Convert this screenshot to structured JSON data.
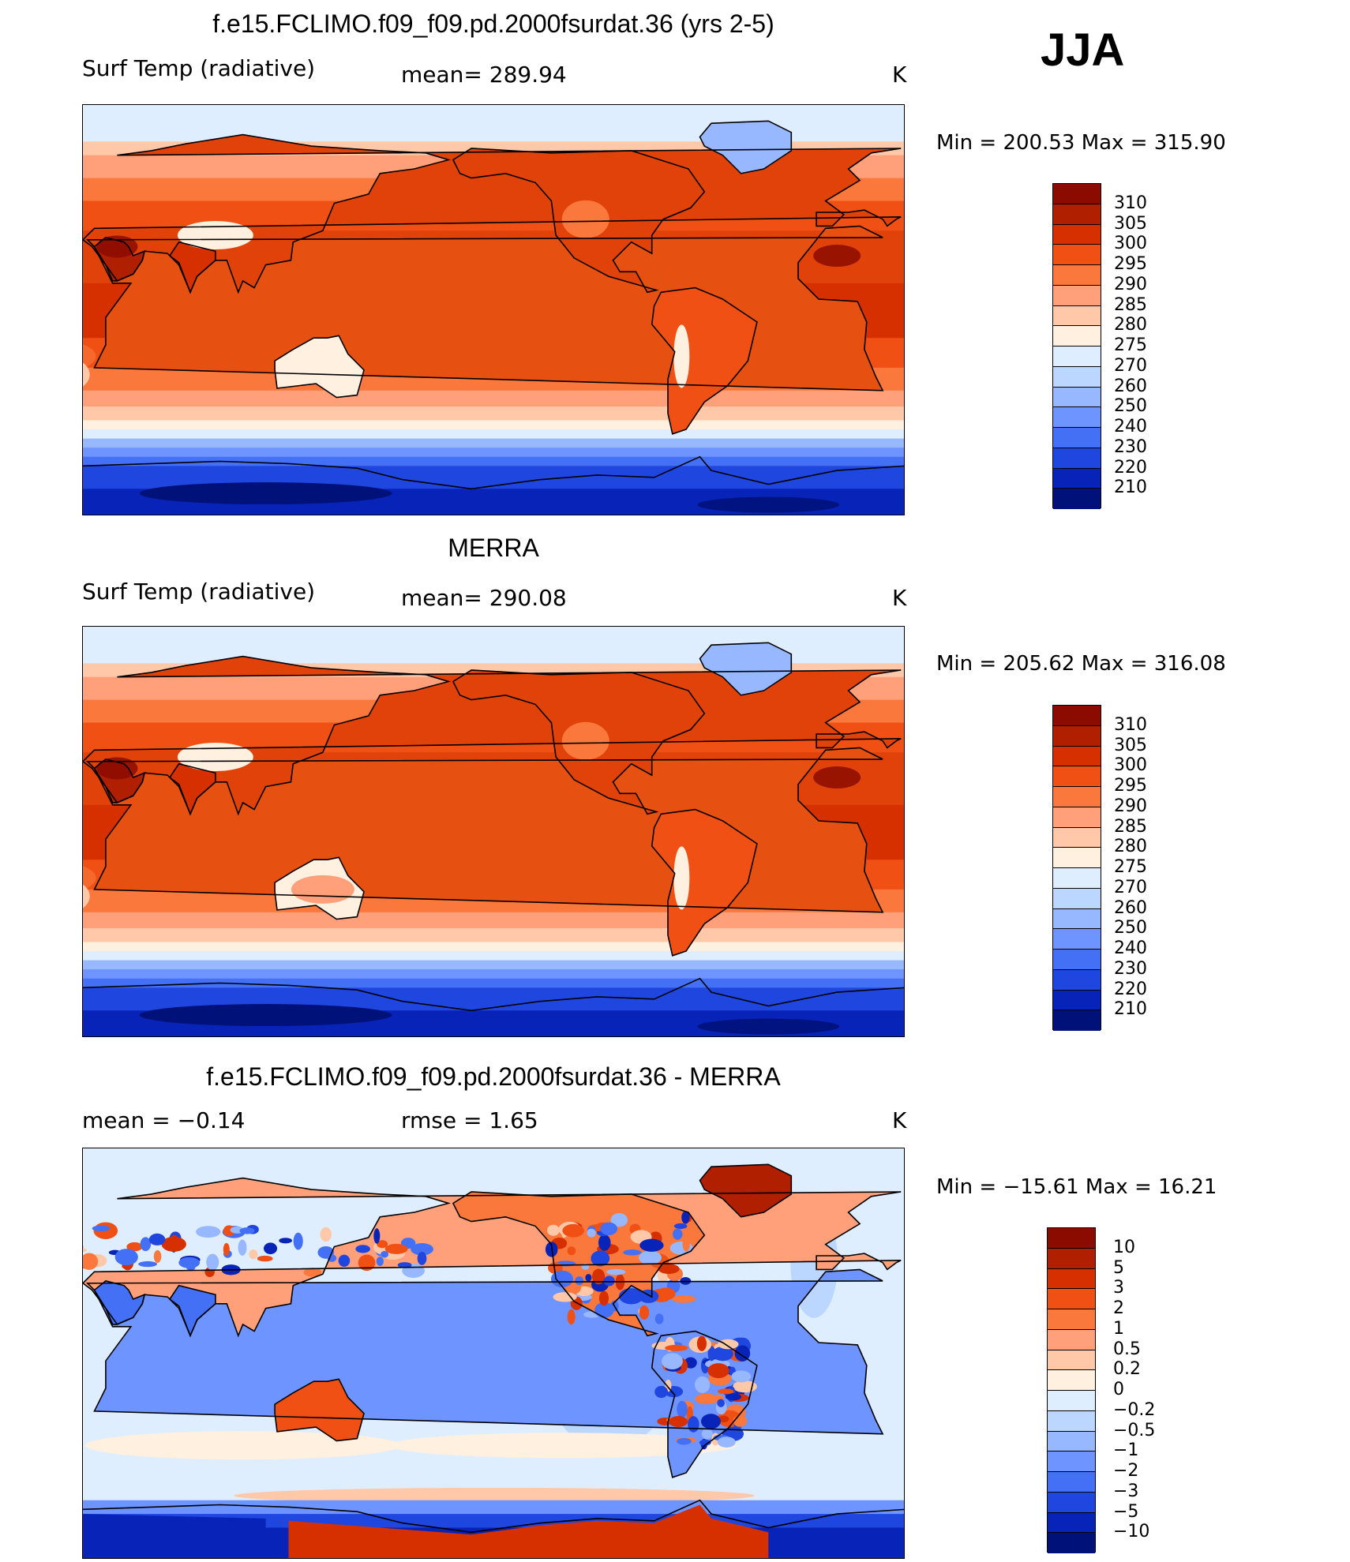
{
  "season": "JJA",
  "unit": "K",
  "panels": [
    {
      "title": "f.e15.FCLIMO.f09_f09.pd.2000fsurdat.36 (yrs 2-5)",
      "left_label": "Surf Temp (radiative)",
      "center_label": "mean= 289.94",
      "unit": "K",
      "minmax": "Min = 200.53 Max = 315.90",
      "legend_labels": [
        "310",
        "305",
        "300",
        "295",
        "290",
        "285",
        "280",
        "275",
        "270",
        "260",
        "250",
        "240",
        "230",
        "220",
        "210"
      ],
      "legend_colors": [
        "#8c0b00",
        "#b01f00",
        "#d63000",
        "#f05014",
        "#fa783c",
        "#ffa07a",
        "#ffc8a8",
        "#fff0e0",
        "#dfeeff",
        "#bcd7ff",
        "#97b8ff",
        "#6e94ff",
        "#4470f5",
        "#2046e0",
        "#0824b8",
        "#00127a"
      ]
    },
    {
      "title": "MERRA",
      "left_label": "Surf Temp (radiative)",
      "center_label": "mean= 290.08",
      "unit": "K",
      "minmax": "Min = 205.62 Max = 316.08",
      "legend_labels": [
        "310",
        "305",
        "300",
        "295",
        "290",
        "285",
        "280",
        "275",
        "270",
        "260",
        "250",
        "240",
        "230",
        "220",
        "210"
      ],
      "legend_colors": [
        "#8c0b00",
        "#b01f00",
        "#d63000",
        "#f05014",
        "#fa783c",
        "#ffa07a",
        "#ffc8a8",
        "#fff0e0",
        "#dfeeff",
        "#bcd7ff",
        "#97b8ff",
        "#6e94ff",
        "#4470f5",
        "#2046e0",
        "#0824b8",
        "#00127a"
      ]
    },
    {
      "title": "f.e15.FCLIMO.f09_f09.pd.2000fsurdat.36 - MERRA",
      "left_label": "mean =   −0.14",
      "center_label": "rmse =    1.65",
      "unit": "K",
      "minmax": "Min = −15.61 Max =  16.21",
      "legend_labels": [
        "10",
        "5",
        "3",
        "2",
        "1",
        "0.5",
        "0.2",
        "0",
        "−0.2",
        "−0.5",
        "−1",
        "−2",
        "−3",
        "−5",
        "−10"
      ],
      "legend_colors": [
        "#8c0b00",
        "#b01f00",
        "#d63000",
        "#f05014",
        "#fa783c",
        "#ffa07a",
        "#ffc8a8",
        "#fff0e0",
        "#dfeeff",
        "#bcd7ff",
        "#97b8ff",
        "#6e94ff",
        "#4470f5",
        "#2046e0",
        "#0824b8",
        "#00127a"
      ]
    }
  ]
}
